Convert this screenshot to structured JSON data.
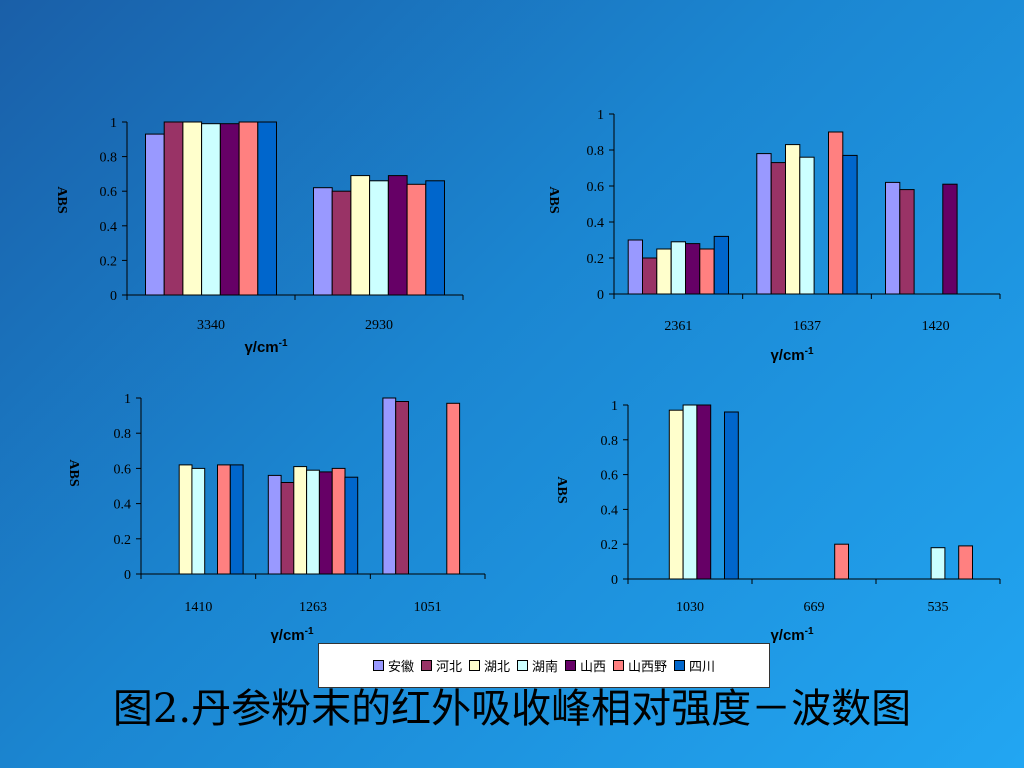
{
  "chart_data": [
    {
      "type": "bar",
      "categories": [
        "3340",
        "2930"
      ],
      "series": [
        {
          "name": "安徽",
          "values": [
            0.93,
            0.62
          ]
        },
        {
          "name": "河北",
          "values": [
            1.0,
            0.6
          ]
        },
        {
          "name": "湖北",
          "values": [
            1.0,
            0.69
          ]
        },
        {
          "name": "湖南",
          "values": [
            0.99,
            0.66
          ]
        },
        {
          "name": "山西",
          "values": [
            0.99,
            0.69
          ]
        },
        {
          "name": "山西野",
          "values": [
            1.0,
            0.64
          ]
        },
        {
          "name": "四川",
          "values": [
            1.0,
            0.66
          ]
        }
      ],
      "ylabel": "ABS",
      "xlabel": "γ/cm-1",
      "ylim": [
        0,
        1
      ],
      "yticks": [
        "0",
        "0.2",
        "0.4",
        "0.6",
        "0.8",
        "1"
      ]
    },
    {
      "type": "bar",
      "categories": [
        "2361",
        "1637",
        "1420"
      ],
      "series": [
        {
          "name": "安徽",
          "values": [
            0.3,
            0.78,
            0.62
          ]
        },
        {
          "name": "河北",
          "values": [
            0.2,
            0.73,
            0.58
          ]
        },
        {
          "name": "湖北",
          "values": [
            0.25,
            0.83,
            null
          ]
        },
        {
          "name": "湖南",
          "values": [
            0.29,
            0.76,
            null
          ]
        },
        {
          "name": "山西",
          "values": [
            0.28,
            null,
            0.61
          ]
        },
        {
          "name": "山西野",
          "values": [
            0.25,
            0.9,
            null
          ]
        },
        {
          "name": "四川",
          "values": [
            0.32,
            0.77,
            null
          ]
        }
      ],
      "ylabel": "ABS",
      "xlabel": "γ/cm-1",
      "ylim": [
        0,
        1
      ],
      "yticks": [
        "0",
        "0.2",
        "0.4",
        "0.6",
        "0.8",
        "1"
      ]
    },
    {
      "type": "bar",
      "categories": [
        "1410",
        "1263",
        "1051"
      ],
      "series": [
        {
          "name": "安徽",
          "values": [
            null,
            0.56,
            1.0
          ]
        },
        {
          "name": "河北",
          "values": [
            null,
            0.52,
            0.98
          ]
        },
        {
          "name": "湖北",
          "values": [
            0.62,
            0.61,
            null
          ]
        },
        {
          "name": "湖南",
          "values": [
            0.6,
            0.59,
            null
          ]
        },
        {
          "name": "山西",
          "values": [
            null,
            0.58,
            null
          ]
        },
        {
          "name": "山西野",
          "values": [
            0.62,
            0.6,
            0.97
          ]
        },
        {
          "name": "四川",
          "values": [
            0.62,
            0.55,
            null
          ]
        }
      ],
      "ylabel": "ABS",
      "xlabel": "γ/cm-1",
      "ylim": [
        0,
        1
      ],
      "yticks": [
        "0",
        "0.2",
        "0.4",
        "0.6",
        "0.8",
        "1"
      ]
    },
    {
      "type": "bar",
      "categories": [
        "1030",
        "669",
        "535"
      ],
      "series": [
        {
          "name": "安徽",
          "values": [
            null,
            null,
            null
          ]
        },
        {
          "name": "河北",
          "values": [
            null,
            null,
            null
          ]
        },
        {
          "name": "湖北",
          "values": [
            0.97,
            null,
            null
          ]
        },
        {
          "name": "湖南",
          "values": [
            1.0,
            null,
            0.18
          ]
        },
        {
          "name": "山西",
          "values": [
            1.0,
            null,
            null
          ]
        },
        {
          "name": "山西野",
          "values": [
            null,
            0.2,
            0.19
          ]
        },
        {
          "name": "四川",
          "values": [
            0.96,
            null,
            null
          ]
        }
      ],
      "ylabel": "ABS",
      "xlabel": "γ/cm-1",
      "ylim": [
        0,
        1
      ],
      "yticks": [
        "0",
        "0.2",
        "0.4",
        "0.6",
        "0.8",
        "1"
      ]
    }
  ],
  "series_colors": [
    "#9999ff",
    "#993366",
    "#ffffcc",
    "#ccffff",
    "#660066",
    "#ff8080",
    "#0066cc"
  ],
  "legend": {
    "items": [
      "安徽",
      "河北",
      "湖北",
      "湖南",
      "山西",
      "山西野",
      "四川"
    ]
  },
  "caption": "图2.丹参粉末的红外吸收峰相对强度－波数图"
}
